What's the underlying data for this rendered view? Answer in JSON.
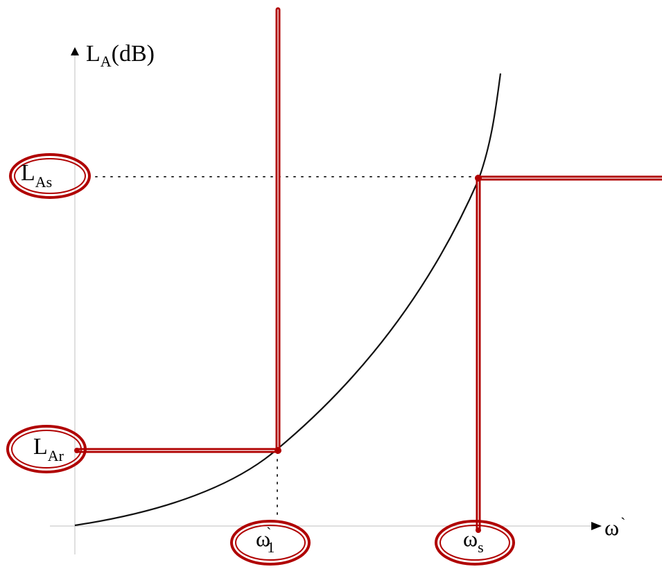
{
  "axes": {
    "y_label_main": "L",
    "y_label_sub": "A",
    "y_label_unit": "(dB)",
    "x_label": "ω",
    "x_label_prime": "`"
  },
  "levels": {
    "stopband": {
      "main": "L",
      "sub": "As"
    },
    "ripple": {
      "main": "L",
      "sub": "Ar"
    }
  },
  "frequencies": {
    "passband_edge": {
      "main": "ω",
      "prime": "`",
      "sub": "1"
    },
    "stopband_edge": {
      "main": "ω",
      "sub": "s"
    }
  },
  "colors": {
    "requirement": "#b00000",
    "curve": "#111111",
    "axis": "#bfbfbf"
  }
}
